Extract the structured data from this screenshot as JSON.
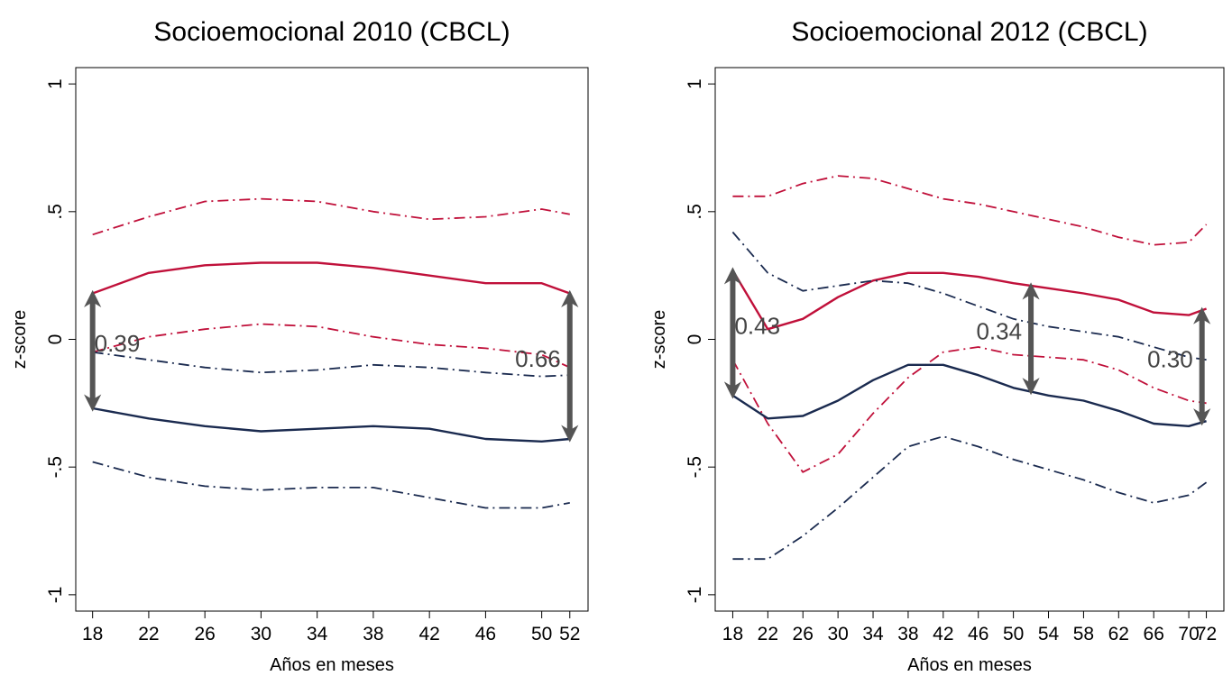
{
  "chart_data": [
    {
      "type": "line",
      "title": "Socioemocional 2010 (CBCL)",
      "x_label": "Años en meses",
      "y_label": "z-score",
      "x": [
        18,
        22,
        26,
        30,
        34,
        38,
        42,
        46,
        50,
        52
      ],
      "xlim": [
        16.8,
        53.3
      ],
      "xticks": [
        18,
        22,
        26,
        30,
        34,
        38,
        42,
        46,
        50,
        52
      ],
      "ylim": [
        -1.064,
        1.064
      ],
      "yticks": [
        {
          "value": -1,
          "label": "-1"
        },
        {
          "value": -0.5,
          "label": "-.5"
        },
        0,
        {
          "value": 0.5,
          "label": ".5"
        },
        1
      ],
      "series": [
        {
          "color": "#c0103a",
          "style": "solid",
          "values": [
            0.18,
            0.26,
            0.29,
            0.3,
            0.3,
            0.28,
            0.25,
            0.22,
            0.22,
            0.18
          ]
        },
        {
          "color": "#c0103a",
          "style": "dashdot",
          "values": [
            0.41,
            0.48,
            0.54,
            0.55,
            0.54,
            0.5,
            0.47,
            0.48,
            0.51,
            0.49
          ]
        },
        {
          "color": "#c0103a",
          "style": "dashdot",
          "values": [
            -0.05,
            0.01,
            0.04,
            0.06,
            0.05,
            0.01,
            -0.02,
            -0.035,
            -0.06,
            -0.11
          ]
        },
        {
          "color": "#1a2a4f",
          "style": "solid",
          "values": [
            -0.27,
            -0.31,
            -0.34,
            -0.36,
            -0.35,
            -0.34,
            -0.35,
            -0.39,
            -0.4,
            -0.39
          ]
        },
        {
          "color": "#1a2a4f",
          "style": "dashdot",
          "values": [
            -0.05,
            -0.08,
            -0.11,
            -0.13,
            -0.12,
            -0.1,
            -0.11,
            -0.13,
            -0.145,
            -0.14
          ]
        },
        {
          "color": "#1a2a4f",
          "style": "dashdot",
          "values": [
            -0.48,
            -0.54,
            -0.575,
            -0.59,
            -0.58,
            -0.58,
            -0.62,
            -0.66,
            -0.66,
            -0.64
          ]
        }
      ],
      "annotations": [
        {
          "text": "0.39",
          "x": 18
        },
        {
          "text": "0.66",
          "x": 52
        }
      ]
    },
    {
      "type": "line",
      "title": "Socioemocional 2012 (CBCL)",
      "x_label": "Años en meses",
      "y_label": "z-score",
      "x": [
        18,
        22,
        26,
        30,
        34,
        38,
        42,
        46,
        50,
        54,
        58,
        62,
        66,
        70,
        72
      ],
      "xlim": [
        16,
        74
      ],
      "xticks": [
        18,
        22,
        26,
        30,
        34,
        38,
        42,
        46,
        50,
        54,
        58,
        62,
        66,
        70,
        72
      ],
      "ylim": [
        -1.064,
        1.064
      ],
      "yticks": [
        {
          "value": -1,
          "label": "-1"
        },
        {
          "value": -0.5,
          "label": "-.5"
        },
        0,
        {
          "value": 0.5,
          "label": ".5"
        },
        1
      ],
      "series": [
        {
          "color": "#c0103a",
          "style": "solid",
          "values": [
            0.27,
            0.04,
            0.08,
            0.165,
            0.23,
            0.26,
            0.26,
            0.245,
            0.22,
            0.2,
            0.18,
            0.155,
            0.105,
            0.095,
            0.12
          ]
        },
        {
          "color": "#c0103a",
          "style": "dashdot",
          "values": [
            0.56,
            0.56,
            0.61,
            0.64,
            0.63,
            0.59,
            0.55,
            0.53,
            0.5,
            0.47,
            0.44,
            0.4,
            0.37,
            0.38,
            0.45
          ]
        },
        {
          "color": "#c0103a",
          "style": "dashdot",
          "values": [
            -0.08,
            -0.33,
            -0.52,
            -0.45,
            -0.29,
            -0.15,
            -0.05,
            -0.03,
            -0.06,
            -0.07,
            -0.08,
            -0.12,
            -0.19,
            -0.24,
            -0.25
          ]
        },
        {
          "color": "#1a2a4f",
          "style": "solid",
          "values": [
            -0.22,
            -0.31,
            -0.3,
            -0.24,
            -0.16,
            -0.1,
            -0.1,
            -0.14,
            -0.19,
            -0.22,
            -0.24,
            -0.28,
            -0.33,
            -0.34,
            -0.32
          ]
        },
        {
          "color": "#1a2a4f",
          "style": "dashdot",
          "values": [
            0.42,
            0.26,
            0.19,
            0.21,
            0.23,
            0.22,
            0.18,
            0.13,
            0.08,
            0.05,
            0.03,
            0.01,
            -0.03,
            -0.07,
            -0.08
          ]
        },
        {
          "color": "#1a2a4f",
          "style": "dashdot",
          "values": [
            -0.86,
            -0.86,
            -0.77,
            -0.66,
            -0.54,
            -0.42,
            -0.38,
            -0.42,
            -0.47,
            -0.51,
            -0.55,
            -0.6,
            -0.64,
            -0.61,
            -0.56
          ]
        }
      ],
      "annotations": [
        {
          "text": "0.43",
          "x": 18
        },
        {
          "text": "0.34",
          "x": 52
        },
        {
          "text": "0.30",
          "x": 71.5
        }
      ]
    }
  ]
}
